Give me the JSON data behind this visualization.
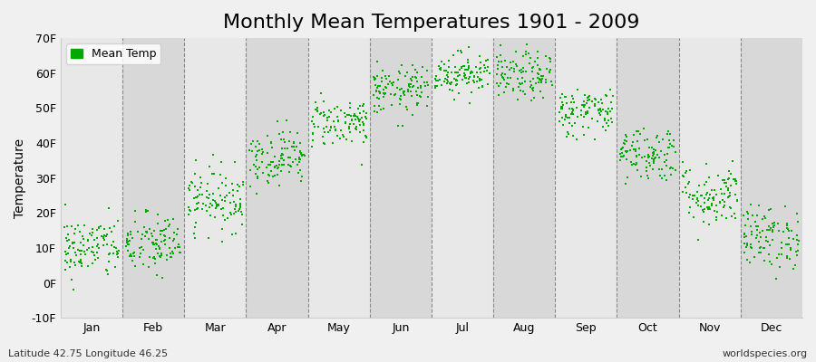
{
  "title": "Monthly Mean Temperatures 1901 - 2009",
  "ylabel": "Temperature",
  "ylim": [
    -10,
    70
  ],
  "yticks": [
    -10,
    0,
    10,
    20,
    30,
    40,
    50,
    60,
    70
  ],
  "ytick_labels": [
    "-10F",
    "0F",
    "10F",
    "20F",
    "30F",
    "40F",
    "50F",
    "60F",
    "70F"
  ],
  "months": [
    "Jan",
    "Feb",
    "Mar",
    "Apr",
    "May",
    "Jun",
    "Jul",
    "Aug",
    "Sep",
    "Oct",
    "Nov",
    "Dec"
  ],
  "month_means_F": [
    10,
    11,
    24,
    36,
    46,
    55,
    60,
    59,
    49,
    37,
    25,
    13
  ],
  "month_stds_F": [
    4.5,
    4.5,
    4.5,
    4.0,
    3.5,
    3.5,
    3.0,
    3.5,
    3.5,
    4.0,
    4.5,
    4.5
  ],
  "n_years": 109,
  "dot_color": "#00aa00",
  "dot_size": 4,
  "background_color": "#f0f0f0",
  "plot_bg_color": "#e8e8e8",
  "alt_band_color": "#d8d8d8",
  "legend_label": "Mean Temp",
  "bottom_left": "Latitude 42.75 Longitude 46.25",
  "bottom_right": "worldspecies.org",
  "title_fontsize": 16,
  "axis_label_fontsize": 10,
  "tick_fontsize": 9,
  "seed": 42
}
